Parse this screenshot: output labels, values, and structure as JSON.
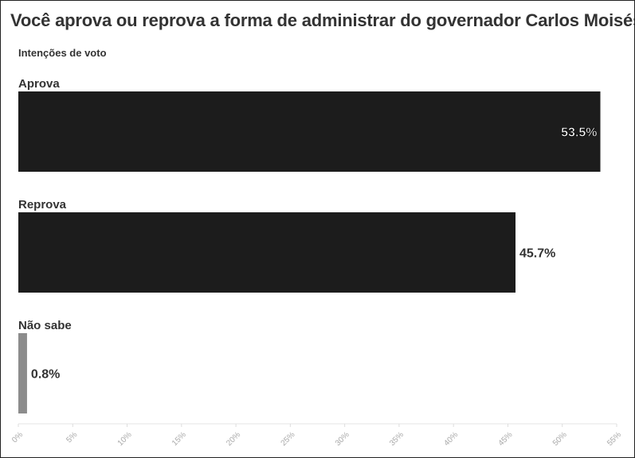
{
  "chart_data": {
    "type": "bar",
    "orientation": "horizontal",
    "title": "Você aprova ou reprova a forma de administrar do governador Carlos Moisés?",
    "subtitle": "Intenções de voto",
    "categories": [
      "Aprova",
      "Reprova",
      "Não sabe"
    ],
    "values": [
      53.5,
      45.7,
      0.8
    ],
    "value_labels": [
      "53.5%",
      "45.7%",
      "0.8%"
    ],
    "colors": [
      "#1c1c1c",
      "#1c1c1c",
      "#8c8c8c"
    ],
    "xlim": [
      0,
      55
    ],
    "xticks": [
      0,
      5,
      10,
      15,
      20,
      25,
      30,
      35,
      40,
      45,
      50,
      55
    ],
    "xtick_labels": [
      "0%",
      "5%",
      "10%",
      "15%",
      "20%",
      "25%",
      "30%",
      "35%",
      "40%",
      "45%",
      "50%",
      "55%"
    ],
    "grid": false,
    "xlabel": "",
    "ylabel": ""
  }
}
